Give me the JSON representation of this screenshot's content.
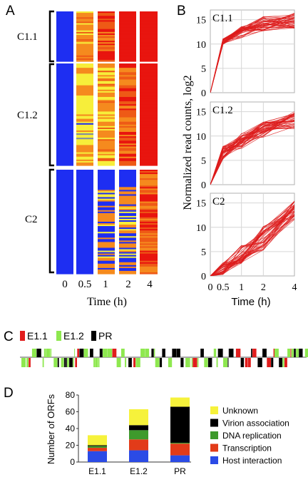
{
  "panels": {
    "a": "A",
    "b": "B",
    "c": "C",
    "d": "D"
  },
  "colors": {
    "red": "#e8150f",
    "orange": "#f58a1e",
    "yellow": "#f7ee3a",
    "blue": "#1e2ef2",
    "line_red": "#dd1c1c",
    "e1_1": "#e11d1d",
    "e1_2": "#8ee84f",
    "pr": "#000000",
    "unknown": "#f6f23b",
    "virion": "#000000",
    "dna": "#3e9a2c",
    "transcription": "#e23b19",
    "host": "#2b4be6"
  },
  "chart_data": [
    {
      "type": "heatmap",
      "panel": "A",
      "columns": [
        "0",
        "0.5",
        "1",
        "2",
        "4"
      ],
      "xlabel": "Time (h)",
      "clusters": [
        {
          "name": "C1.1",
          "rows": 34,
          "profile": [
            "blue",
            "orange-yellow",
            "orange-red",
            "red",
            "red"
          ]
        },
        {
          "name": "C1.2",
          "rows": 70,
          "profile": [
            "blue",
            "yellow-mixed",
            "yellow-orange",
            "orange-red",
            "red"
          ]
        },
        {
          "name": "C2",
          "rows": 72,
          "profile": [
            "blue",
            "blue",
            "blue-yellow",
            "yellow-blue",
            "orange-red"
          ]
        }
      ]
    },
    {
      "type": "line",
      "panel": "B",
      "x": [
        0,
        0.5,
        1,
        2,
        4
      ],
      "x_ticks": [
        "0",
        "0.5",
        "1",
        "2",
        "4"
      ],
      "xlabel": "Time (h)",
      "ylabel": "Normalized read counts, log2",
      "ylim": [
        0,
        17
      ],
      "y_ticks": [
        "0",
        "5",
        "10",
        "15"
      ],
      "grid": true,
      "subplots": [
        {
          "name": "C1.1",
          "mean": [
            0,
            10.5,
            12.5,
            14.2,
            14.8
          ],
          "spread": [
            0,
            0.6,
            1.2,
            1.5,
            1.6
          ]
        },
        {
          "name": "C1.2",
          "mean": [
            0,
            6.5,
            9.0,
            11.3,
            13.3
          ],
          "spread": [
            0,
            1.4,
            1.6,
            1.6,
            1.8
          ]
        },
        {
          "name": "C2",
          "mean": [
            0,
            1.5,
            4.5,
            7.8,
            13.5
          ],
          "spread": [
            0,
            1.2,
            2.0,
            2.5,
            2.0
          ]
        }
      ]
    },
    {
      "type": "bar",
      "panel": "C",
      "legend": [
        {
          "name": "E1.1",
          "color": "#e11d1d"
        },
        {
          "name": "E1.2",
          "color": "#8ee84f"
        },
        {
          "name": "PR",
          "color": "#000000"
        }
      ]
    },
    {
      "type": "bar",
      "panel": "D",
      "stacked": true,
      "categories": [
        "E1.1",
        "E1.2",
        "PR"
      ],
      "ylabel": "Number of ORFs",
      "ylim": [
        0,
        80
      ],
      "y_ticks": [
        "0",
        "20",
        "40",
        "60",
        "80"
      ],
      "series": [
        {
          "name": "Host interaction",
          "color": "#2b4be6",
          "values": [
            13,
            14,
            8
          ]
        },
        {
          "name": "Transcription",
          "color": "#e23b19",
          "values": [
            4,
            13,
            14
          ]
        },
        {
          "name": "DNA replication",
          "color": "#3e9a2c",
          "values": [
            2,
            11,
            1
          ]
        },
        {
          "name": "Virion association",
          "color": "#000000",
          "values": [
            1,
            6,
            43
          ]
        },
        {
          "name": "Unknown",
          "color": "#f6f23b",
          "values": [
            12,
            19,
            11
          ]
        }
      ],
      "legend_order": [
        "Unknown",
        "Virion association",
        "DNA replication",
        "Transcription",
        "Host interaction"
      ]
    }
  ]
}
